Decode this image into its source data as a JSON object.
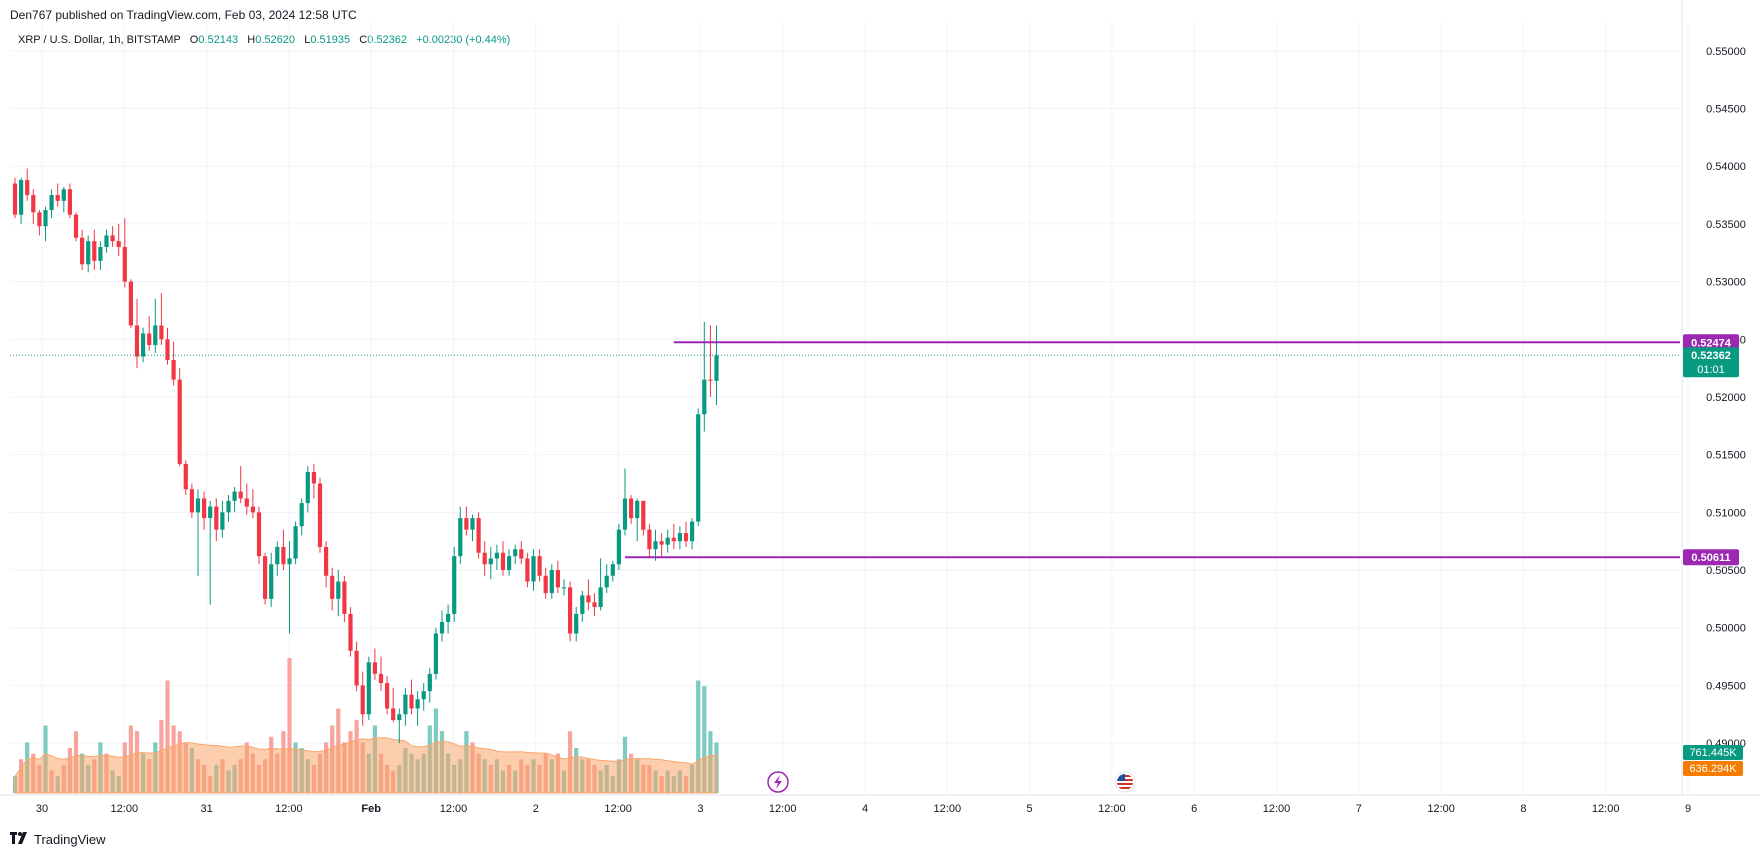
{
  "header": {
    "published": "Den767 published on TradingView.com, Feb 03, 2024 12:58 UTC"
  },
  "legend": {
    "symbol": "XRP / U.S. Dollar, 1h, BITSTAMP",
    "o_label": "O",
    "o": "0.52143",
    "h_label": "H",
    "h": "0.52620",
    "l_label": "L",
    "l": "0.51935",
    "c_label": "C",
    "c": "0.52362",
    "change": "+0.00230 (+0.44%)"
  },
  "footer": {
    "brand": "TradingView"
  },
  "colors": {
    "up": "#089981",
    "down": "#f23645",
    "level": "#9c27b0",
    "vol_up": "#7fcbc1",
    "vol_down": "#f7a39e",
    "vol_ma": "#f9a66c"
  },
  "chart_data": {
    "type": "candlestick",
    "symbol": "XRP / U.S. Dollar",
    "interval": "1h",
    "exchange": "BITSTAMP",
    "ylim": [
      0.4855,
      0.5525
    ],
    "y_ticks": [
      "0.55000",
      "0.54500",
      "0.54000",
      "0.53500",
      "0.53000",
      "0.52500",
      "0.52000",
      "0.51500",
      "0.51000",
      "0.50500",
      "0.50000",
      "0.49500",
      "0.49000"
    ],
    "x_ticks": [
      "30",
      "12:00",
      "31",
      "12:00",
      "Feb",
      "12:00",
      "2",
      "12:00",
      "3",
      "12:00",
      "4",
      "12:00",
      "5",
      "12:00",
      "6",
      "12:00",
      "7",
      "12:00",
      "8",
      "12:00",
      "9"
    ],
    "candles": [
      [
        0.5385,
        0.539,
        0.5355,
        0.5358
      ],
      [
        0.5358,
        0.539,
        0.535,
        0.5388
      ],
      [
        0.5388,
        0.5398,
        0.537,
        0.5375
      ],
      [
        0.5375,
        0.538,
        0.535,
        0.536
      ],
      [
        0.536,
        0.5362,
        0.534,
        0.5348
      ],
      [
        0.5348,
        0.5365,
        0.5335,
        0.5362
      ],
      [
        0.5362,
        0.538,
        0.5355,
        0.5375
      ],
      [
        0.5375,
        0.5385,
        0.5365,
        0.537
      ],
      [
        0.537,
        0.5382,
        0.536,
        0.538
      ],
      [
        0.538,
        0.5385,
        0.5355,
        0.5358
      ],
      [
        0.5358,
        0.536,
        0.5335,
        0.5338
      ],
      [
        0.5338,
        0.5345,
        0.531,
        0.5315
      ],
      [
        0.5315,
        0.534,
        0.5308,
        0.5335
      ],
      [
        0.5335,
        0.5345,
        0.531,
        0.5318
      ],
      [
        0.5318,
        0.5335,
        0.531,
        0.533
      ],
      [
        0.533,
        0.5345,
        0.5325,
        0.534
      ],
      [
        0.534,
        0.5348,
        0.533,
        0.5335
      ],
      [
        0.5335,
        0.535,
        0.5322,
        0.533
      ],
      [
        0.533,
        0.5355,
        0.5295,
        0.53
      ],
      [
        0.53,
        0.5302,
        0.526,
        0.5262
      ],
      [
        0.5262,
        0.5285,
        0.5225,
        0.5235
      ],
      [
        0.5235,
        0.526,
        0.523,
        0.5255
      ],
      [
        0.5255,
        0.527,
        0.524,
        0.5245
      ],
      [
        0.5245,
        0.5285,
        0.5238,
        0.5262
      ],
      [
        0.5262,
        0.529,
        0.5245,
        0.525
      ],
      [
        0.525,
        0.526,
        0.5228,
        0.5232
      ],
      [
        0.5232,
        0.5248,
        0.521,
        0.5215
      ],
      [
        0.5215,
        0.5225,
        0.514,
        0.5142
      ],
      [
        0.5142,
        0.5145,
        0.5115,
        0.512
      ],
      [
        0.512,
        0.5125,
        0.5095,
        0.51
      ],
      [
        0.51,
        0.512,
        0.5045,
        0.5112
      ],
      [
        0.5112,
        0.5118,
        0.5085,
        0.5095
      ],
      [
        0.5095,
        0.511,
        0.502,
        0.5105
      ],
      [
        0.5105,
        0.5112,
        0.5075,
        0.5085
      ],
      [
        0.5085,
        0.511,
        0.5078,
        0.51
      ],
      [
        0.51,
        0.5115,
        0.5092,
        0.511
      ],
      [
        0.511,
        0.5122,
        0.51,
        0.5118
      ],
      [
        0.5118,
        0.514,
        0.5108,
        0.5112
      ],
      [
        0.5112,
        0.5125,
        0.5098,
        0.5105
      ],
      [
        0.5105,
        0.512,
        0.5095,
        0.51
      ],
      [
        0.51,
        0.5105,
        0.5055,
        0.5062
      ],
      [
        0.5062,
        0.5065,
        0.502,
        0.5025
      ],
      [
        0.5025,
        0.5065,
        0.5018,
        0.5055
      ],
      [
        0.5055,
        0.5075,
        0.5045,
        0.507
      ],
      [
        0.507,
        0.5085,
        0.505,
        0.5055
      ],
      [
        0.5055,
        0.5075,
        0.4995,
        0.506
      ],
      [
        0.506,
        0.5092,
        0.5055,
        0.5088
      ],
      [
        0.5088,
        0.5112,
        0.508,
        0.5108
      ],
      [
        0.5108,
        0.514,
        0.51,
        0.5135
      ],
      [
        0.5135,
        0.5142,
        0.5112,
        0.5125
      ],
      [
        0.5125,
        0.513,
        0.5065,
        0.507
      ],
      [
        0.507,
        0.5075,
        0.5035,
        0.5045
      ],
      [
        0.5045,
        0.5052,
        0.5015,
        0.5025
      ],
      [
        0.5025,
        0.505,
        0.501,
        0.504
      ],
      [
        0.504,
        0.5045,
        0.5005,
        0.5012
      ],
      [
        0.5012,
        0.5018,
        0.4975,
        0.498
      ],
      [
        0.498,
        0.4988,
        0.4945,
        0.495
      ],
      [
        0.495,
        0.4962,
        0.4915,
        0.4925
      ],
      [
        0.4925,
        0.4975,
        0.492,
        0.497
      ],
      [
        0.497,
        0.4982,
        0.4955,
        0.496
      ],
      [
        0.496,
        0.4975,
        0.4945,
        0.4952
      ],
      [
        0.4952,
        0.4958,
        0.4925,
        0.493
      ],
      [
        0.493,
        0.4948,
        0.4918,
        0.492
      ],
      [
        0.492,
        0.493,
        0.49,
        0.4925
      ],
      [
        0.4925,
        0.4948,
        0.4915,
        0.4942
      ],
      [
        0.4942,
        0.4955,
        0.4925,
        0.493
      ],
      [
        0.493,
        0.4945,
        0.4915,
        0.4938
      ],
      [
        0.4938,
        0.4952,
        0.4928,
        0.4945
      ],
      [
        0.4945,
        0.4965,
        0.4935,
        0.496
      ],
      [
        0.496,
        0.5,
        0.4955,
        0.4995
      ],
      [
        0.4995,
        0.5015,
        0.4988,
        0.5005
      ],
      [
        0.5005,
        0.502,
        0.4995,
        0.5012
      ],
      [
        0.5012,
        0.507,
        0.5005,
        0.5062
      ],
      [
        0.5062,
        0.5105,
        0.5055,
        0.5095
      ],
      [
        0.5095,
        0.5105,
        0.508,
        0.5085
      ],
      [
        0.5085,
        0.5098,
        0.5075,
        0.5095
      ],
      [
        0.5095,
        0.51,
        0.506,
        0.5065
      ],
      [
        0.5065,
        0.5075,
        0.5045,
        0.5055
      ],
      [
        0.5055,
        0.507,
        0.5042,
        0.506
      ],
      [
        0.506,
        0.5072,
        0.505,
        0.5065
      ],
      [
        0.5065,
        0.5075,
        0.5045,
        0.505
      ],
      [
        0.505,
        0.5068,
        0.5045,
        0.5062
      ],
      [
        0.5062,
        0.5072,
        0.5055,
        0.5068
      ],
      [
        0.5068,
        0.5075,
        0.5055,
        0.506
      ],
      [
        0.506,
        0.5065,
        0.5035,
        0.504
      ],
      [
        0.504,
        0.5068,
        0.5032,
        0.5062
      ],
      [
        0.5062,
        0.5068,
        0.504,
        0.5045
      ],
      [
        0.5045,
        0.5052,
        0.5025,
        0.503
      ],
      [
        0.503,
        0.5055,
        0.5025,
        0.505
      ],
      [
        0.505,
        0.5058,
        0.503,
        0.5035
      ],
      [
        0.5035,
        0.5042,
        0.5028,
        0.5035
      ],
      [
        0.5035,
        0.504,
        0.4988,
        0.4995
      ],
      [
        0.4995,
        0.5018,
        0.4988,
        0.5012
      ],
      [
        0.5012,
        0.5032,
        0.5005,
        0.5028
      ],
      [
        0.5028,
        0.5042,
        0.5015,
        0.5022
      ],
      [
        0.5022,
        0.503,
        0.501,
        0.5018
      ],
      [
        0.5018,
        0.506,
        0.5015,
        0.5035
      ],
      [
        0.5035,
        0.5055,
        0.503,
        0.5045
      ],
      [
        0.5045,
        0.5058,
        0.504,
        0.5055
      ],
      [
        0.5055,
        0.509,
        0.505,
        0.5085
      ],
      [
        0.5085,
        0.5138,
        0.508,
        0.5112
      ],
      [
        0.5112,
        0.5115,
        0.509,
        0.5095
      ],
      [
        0.5095,
        0.5112,
        0.5075,
        0.511
      ],
      [
        0.511,
        0.511,
        0.508,
        0.5085
      ],
      [
        0.5085,
        0.509,
        0.506,
        0.5068
      ],
      [
        0.5068,
        0.5085,
        0.5058,
        0.5075
      ],
      [
        0.5075,
        0.5082,
        0.5062,
        0.5072
      ],
      [
        0.5072,
        0.5085,
        0.5065,
        0.5078
      ],
      [
        0.5078,
        0.509,
        0.5068,
        0.5075
      ],
      [
        0.5075,
        0.5088,
        0.5068,
        0.5082
      ],
      [
        0.5082,
        0.5092,
        0.507,
        0.5075
      ],
      [
        0.5075,
        0.5095,
        0.5068,
        0.5092
      ],
      [
        0.5092,
        0.519,
        0.5088,
        0.5185
      ],
      [
        0.5185,
        0.5265,
        0.517,
        0.5215
      ],
      [
        0.5215,
        0.5262,
        0.52,
        0.5214
      ],
      [
        0.5214,
        0.5262,
        0.5193,
        0.5236
      ]
    ],
    "volume": [
      [
        0.15,
        1
      ],
      [
        0.3,
        0
      ],
      [
        0.45,
        1
      ],
      [
        0.35,
        0
      ],
      [
        0.25,
        0
      ],
      [
        0.6,
        1
      ],
      [
        0.2,
        0
      ],
      [
        0.15,
        1
      ],
      [
        0.25,
        0
      ],
      [
        0.4,
        0
      ],
      [
        0.55,
        0
      ],
      [
        0.35,
        1
      ],
      [
        0.25,
        1
      ],
      [
        0.3,
        0
      ],
      [
        0.45,
        1
      ],
      [
        0.35,
        0
      ],
      [
        0.2,
        1
      ],
      [
        0.15,
        1
      ],
      [
        0.45,
        0
      ],
      [
        0.6,
        0
      ],
      [
        0.55,
        0
      ],
      [
        0.35,
        1
      ],
      [
        0.3,
        0
      ],
      [
        0.45,
        1
      ],
      [
        0.65,
        0
      ],
      [
        1.0,
        0
      ],
      [
        0.6,
        0
      ],
      [
        0.55,
        0
      ],
      [
        0.45,
        0
      ],
      [
        0.4,
        1
      ],
      [
        0.3,
        0
      ],
      [
        0.25,
        0
      ],
      [
        0.15,
        0
      ],
      [
        0.25,
        1
      ],
      [
        0.3,
        0
      ],
      [
        0.2,
        1
      ],
      [
        0.25,
        1
      ],
      [
        0.3,
        0
      ],
      [
        0.45,
        0
      ],
      [
        0.35,
        0
      ],
      [
        0.25,
        0
      ],
      [
        0.3,
        0
      ],
      [
        0.5,
        0
      ],
      [
        0.35,
        0
      ],
      [
        0.55,
        0
      ],
      [
        1.2,
        0
      ],
      [
        0.45,
        1
      ],
      [
        0.4,
        1
      ],
      [
        0.3,
        1
      ],
      [
        0.25,
        0
      ],
      [
        0.35,
        0
      ],
      [
        0.45,
        0
      ],
      [
        0.6,
        0
      ],
      [
        0.75,
        0
      ],
      [
        0.45,
        0
      ],
      [
        0.55,
        0
      ],
      [
        0.65,
        0
      ],
      [
        0.45,
        0
      ],
      [
        0.35,
        1
      ],
      [
        0.6,
        1
      ],
      [
        0.35,
        0
      ],
      [
        0.25,
        0
      ],
      [
        0.2,
        0
      ],
      [
        0.25,
        1
      ],
      [
        0.4,
        1
      ],
      [
        0.35,
        1
      ],
      [
        0.3,
        1
      ],
      [
        0.35,
        1
      ],
      [
        0.6,
        1
      ],
      [
        0.75,
        1
      ],
      [
        0.55,
        1
      ],
      [
        0.35,
        1
      ],
      [
        0.25,
        1
      ],
      [
        0.3,
        1
      ],
      [
        0.55,
        1
      ],
      [
        0.45,
        0
      ],
      [
        0.35,
        0
      ],
      [
        0.3,
        1
      ],
      [
        0.25,
        0
      ],
      [
        0.3,
        1
      ],
      [
        0.2,
        1
      ],
      [
        0.25,
        0
      ],
      [
        0.2,
        1
      ],
      [
        0.3,
        0
      ],
      [
        0.25,
        0
      ],
      [
        0.3,
        1
      ],
      [
        0.25,
        0
      ],
      [
        0.35,
        0
      ],
      [
        0.3,
        1
      ],
      [
        0.35,
        0
      ],
      [
        0.2,
        1
      ],
      [
        0.55,
        0
      ],
      [
        0.4,
        1
      ],
      [
        0.3,
        1
      ],
      [
        0.3,
        0
      ],
      [
        0.25,
        0
      ],
      [
        0.2,
        1
      ],
      [
        0.25,
        1
      ],
      [
        0.15,
        1
      ],
      [
        0.3,
        1
      ],
      [
        0.5,
        1
      ],
      [
        0.35,
        0
      ],
      [
        0.3,
        1
      ],
      [
        0.25,
        0
      ],
      [
        0.25,
        0
      ],
      [
        0.2,
        1
      ],
      [
        0.15,
        0
      ],
      [
        0.2,
        1
      ],
      [
        0.15,
        1
      ],
      [
        0.2,
        1
      ],
      [
        0.15,
        0
      ],
      [
        0.25,
        1
      ],
      [
        1.0,
        1
      ],
      [
        0.95,
        1
      ],
      [
        0.55,
        1
      ],
      [
        0.45,
        1
      ]
    ],
    "volume_labels": {
      "ma_value": "636.294K",
      "last_volume": "761.445K"
    },
    "horizontal_levels": [
      {
        "value": 0.52474,
        "label": "0.52474"
      },
      {
        "value": 0.50611,
        "label": "0.50611"
      }
    ],
    "last_price": {
      "value": 0.52362,
      "label": "0.52362",
      "countdown": "01:01"
    },
    "grid": true
  }
}
